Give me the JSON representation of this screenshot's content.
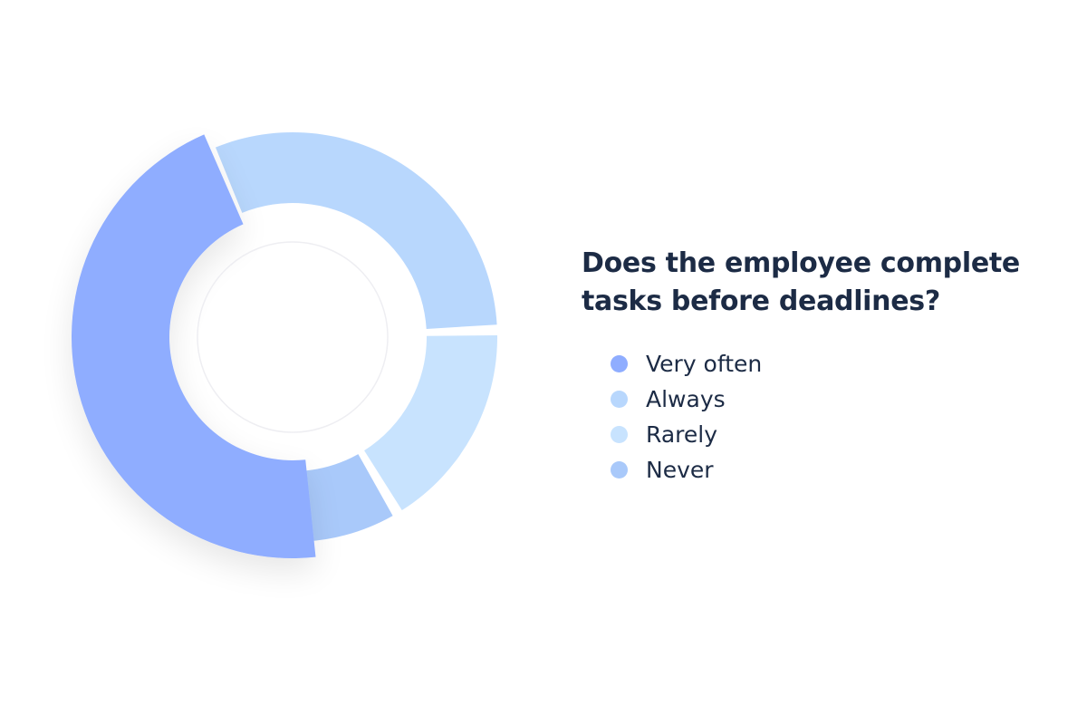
{
  "chart_data": {
    "type": "pie",
    "variant": "donut",
    "title": "Does the employee complete tasks before deadlines?",
    "categories": [
      "Very often",
      "Always",
      "Rarely",
      "Never"
    ],
    "values": [
      44,
      31,
      17,
      8
    ],
    "colors": [
      "#8fadff",
      "#b8d7fd",
      "#c8e3fe",
      "#a9c9fa"
    ],
    "legend": "right"
  }
}
